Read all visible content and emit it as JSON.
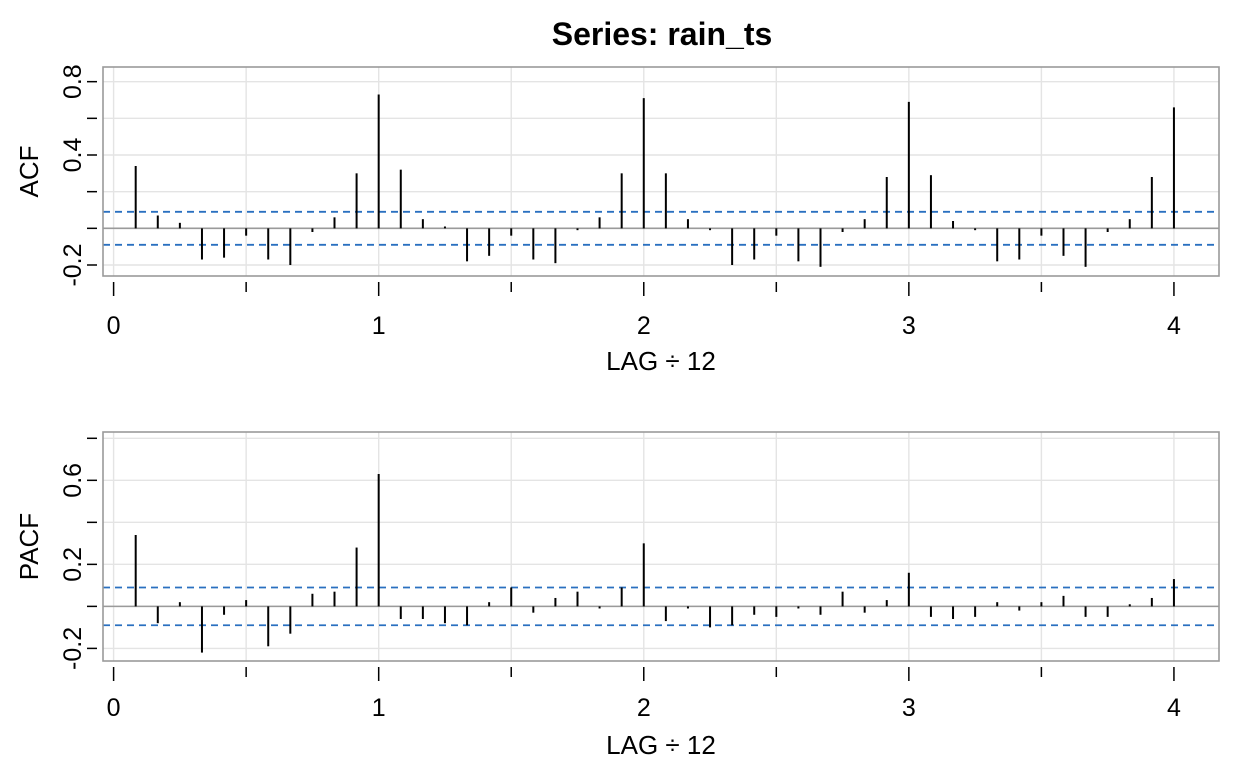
{
  "chart_data": [
    {
      "type": "bar",
      "title": "Series:  rain_ts",
      "xlabel": "LAG ÷ 12",
      "ylabel": "ACF",
      "xlim": [
        -0.04,
        4.17
      ],
      "ylim": [
        -0.26,
        0.88
      ],
      "x_ticks": [
        "0",
        "1",
        "2",
        "3",
        "4"
      ],
      "y_ticks": [
        "-0.2",
        "0.4",
        "0.8"
      ],
      "y_grid": [
        -0.2,
        0.0,
        0.2,
        0.4,
        0.6,
        0.8
      ],
      "conf_limit": 0.09,
      "grid": true,
      "lag_step": 0.08333333333,
      "values": [
        0.34,
        0.07,
        0.03,
        -0.17,
        -0.16,
        -0.04,
        -0.17,
        -0.2,
        -0.02,
        0.06,
        0.3,
        0.73,
        0.32,
        0.05,
        0.01,
        -0.18,
        -0.15,
        -0.04,
        -0.17,
        -0.19,
        -0.01,
        0.06,
        0.3,
        0.71,
        0.3,
        0.05,
        -0.01,
        -0.2,
        -0.17,
        -0.04,
        -0.18,
        -0.21,
        -0.02,
        0.05,
        0.28,
        0.69,
        0.29,
        0.04,
        -0.01,
        -0.18,
        -0.17,
        -0.04,
        -0.15,
        -0.21,
        -0.02,
        0.05,
        0.28,
        0.66
      ]
    },
    {
      "type": "bar",
      "title": "",
      "xlabel": "LAG ÷ 12",
      "ylabel": "PACF",
      "xlim": [
        -0.04,
        4.17
      ],
      "ylim": [
        -0.26,
        0.83
      ],
      "x_ticks": [
        "0",
        "1",
        "2",
        "3",
        "4"
      ],
      "y_ticks": [
        "-0.2",
        "0.2",
        "0.6"
      ],
      "y_grid": [
        -0.2,
        0.0,
        0.2,
        0.4,
        0.6,
        0.8
      ],
      "conf_limit": 0.09,
      "grid": true,
      "lag_step": 0.08333333333,
      "values": [
        0.34,
        -0.08,
        0.02,
        -0.22,
        -0.04,
        0.03,
        -0.19,
        -0.13,
        0.06,
        0.07,
        0.28,
        0.63,
        -0.06,
        -0.06,
        -0.08,
        -0.09,
        0.02,
        0.09,
        -0.03,
        0.04,
        0.07,
        -0.01,
        0.09,
        0.3,
        -0.07,
        -0.01,
        -0.1,
        -0.09,
        -0.04,
        -0.05,
        -0.01,
        -0.04,
        0.07,
        -0.03,
        0.03,
        0.16,
        -0.05,
        -0.06,
        -0.05,
        0.02,
        -0.02,
        0.02,
        0.05,
        -0.05,
        -0.05,
        0.01,
        0.04,
        0.13
      ]
    }
  ]
}
